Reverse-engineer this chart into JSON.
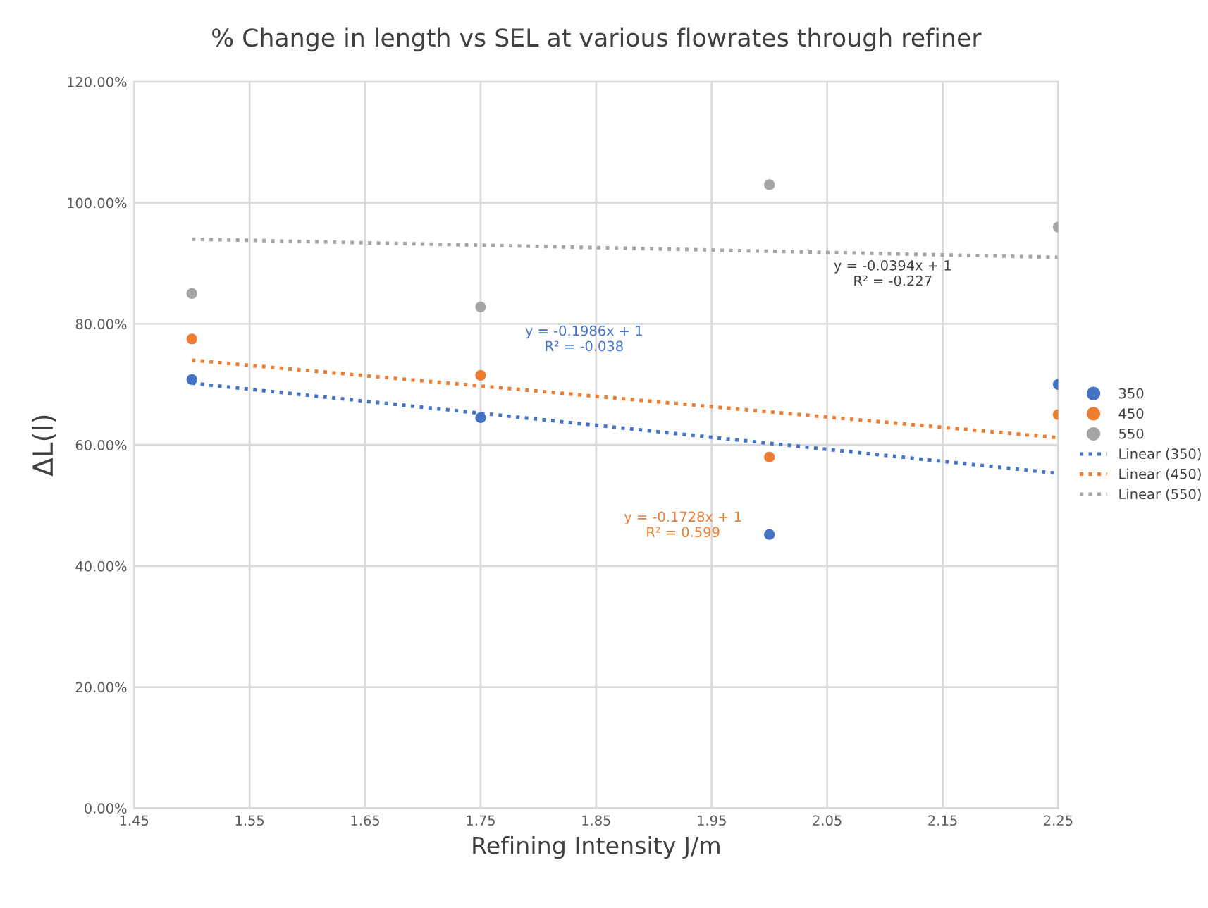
{
  "chart_data": {
    "type": "scatter",
    "title": "% Change in length vs SEL at various flowrates through refiner",
    "xlabel": "Refining Intensity J/m",
    "ylabel": "ΔL(l)",
    "series": [
      {
        "name": "350",
        "color": "#4472c4",
        "x": [
          1.5,
          1.75,
          2.0,
          2.25
        ],
        "values": [
          70.8,
          64.5,
          45.2,
          70.0
        ]
      },
      {
        "name": "450",
        "color": "#ed7d31",
        "x": [
          1.5,
          1.75,
          2.0,
          2.25
        ],
        "values": [
          77.5,
          71.5,
          58.0,
          65.0
        ]
      },
      {
        "name": "550",
        "color": "#a5a5a5",
        "x": [
          1.5,
          1.75,
          2.0,
          2.25
        ],
        "values": [
          85.0,
          82.8,
          103.0,
          96.0
        ]
      },
      {
        "name": "Linear (350)",
        "color": "#4472c4",
        "type": "line",
        "line_style": "dotted",
        "marker": "none",
        "x": [
          1.5,
          2.25
        ],
        "values": [
          70.2,
          55.3
        ]
      },
      {
        "name": "Linear (450)",
        "color": "#ed7d31",
        "type": "line",
        "line_style": "dotted",
        "marker": "none",
        "x": [
          1.5,
          2.25
        ],
        "values": [
          74.0,
          61.2
        ]
      },
      {
        "name": "Linear (550)",
        "color": "#a5a5a5",
        "type": "line",
        "line_style": "dotted",
        "marker": "none",
        "x": [
          1.5,
          2.25
        ],
        "values": [
          94.0,
          91.0
        ]
      }
    ],
    "annotations": [
      "y = -0.1986x + 1\nR² = -0.038",
      "y = -0.1728x + 1\nR² = 0.599",
      "y = -0.0394x + 1\nR² = -0.227"
    ],
    "xlim": [
      1.45,
      2.25
    ],
    "xticks": [
      1.45,
      1.55,
      1.65,
      1.75,
      1.85,
      1.95,
      2.05,
      2.15,
      2.25
    ],
    "ylim": [
      0,
      120
    ],
    "yticks": [
      {
        "value": 0,
        "label": "0.00%"
      },
      {
        "value": 20,
        "label": "20.00%"
      },
      {
        "value": 40,
        "label": "40.00%"
      },
      {
        "value": 60,
        "label": "60.00%"
      },
      {
        "value": 80,
        "label": "80.00%"
      },
      {
        "value": 100,
        "label": "100.00%"
      },
      {
        "value": 120,
        "label": "120.00%"
      }
    ],
    "grid": true,
    "legend": "right",
    "marker": "circle"
  }
}
